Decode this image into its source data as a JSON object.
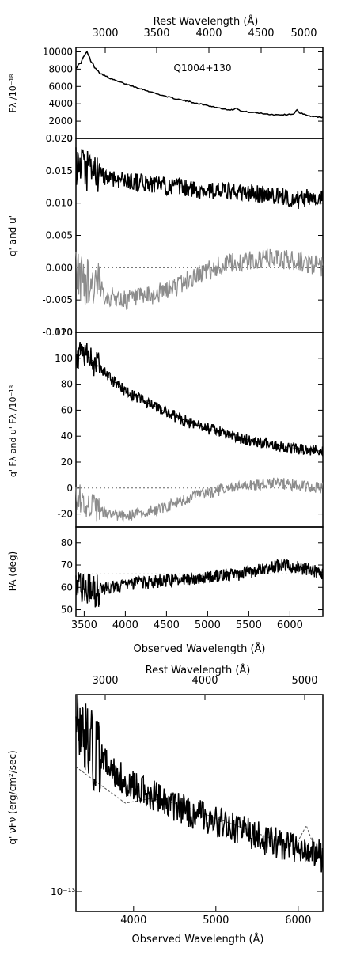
{
  "chart_data": [
    {
      "type": "line",
      "panel": "flux",
      "top_axis_label": "Rest Wavelength (Å)",
      "top_ticks": [
        "3000",
        "3500",
        "4000",
        "4500",
        "5000"
      ],
      "ylabel": "Fλ /10⁻¹⁸",
      "annotation": "Q1004+130",
      "xlim": [
        3400,
        6400
      ],
      "ylim": [
        0,
        10500
      ],
      "y_ticks": [
        "10000",
        "8000",
        "6000",
        "4000",
        "2000",
        "0"
      ],
      "series": [
        {
          "color": "#000000",
          "x": [
            3400,
            3450,
            3500,
            3530,
            3560,
            3600,
            3650,
            3700,
            3800,
            3900,
            4000,
            4100,
            4200,
            4400,
            4600,
            4800,
            5000,
            5200,
            5300,
            5350,
            5400,
            5600,
            5800,
            5950,
            6050,
            6080,
            6120,
            6150,
            6200,
            6300,
            6400
          ],
          "y": [
            8200,
            8600,
            9500,
            10000,
            9400,
            8600,
            8000,
            7500,
            7000,
            6600,
            6300,
            6000,
            5700,
            5100,
            4600,
            4200,
            3800,
            3400,
            3300,
            3550,
            3150,
            2950,
            2750,
            2750,
            2850,
            3350,
            2850,
            2900,
            2700,
            2500,
            2450
          ]
        }
      ]
    },
    {
      "type": "line",
      "panel": "stokes",
      "ylabel": "q' and u'",
      "xlim": [
        3400,
        6400
      ],
      "ylim": [
        -0.01,
        0.02
      ],
      "y_ticks": [
        "0.020",
        "0.015",
        "0.010",
        "0.005",
        "0.000",
        "-0.005",
        "-0.010"
      ],
      "reference_lines": [
        0
      ],
      "series": [
        {
          "name": "q'",
          "color": "#000000",
          "x": [
            3400,
            3600,
            3800,
            4000,
            4300,
            4600,
            4900,
            5200,
            5500,
            5800,
            6100,
            6300,
            6400
          ],
          "y": [
            0.0155,
            0.0145,
            0.014,
            0.0135,
            0.013,
            0.0125,
            0.012,
            0.0118,
            0.0115,
            0.0112,
            0.0105,
            0.011,
            0.0108
          ]
        },
        {
          "name": "u'",
          "color": "#8c8c8c",
          "x": [
            3400,
            3600,
            3800,
            4000,
            4300,
            4600,
            4900,
            5200,
            5500,
            5800,
            6100,
            6300,
            6400
          ],
          "y": [
            -0.001,
            -0.0025,
            -0.0045,
            -0.005,
            -0.0045,
            -0.003,
            -0.001,
            0.0005,
            0.001,
            0.0015,
            0.001,
            0.0005,
            0.0
          ]
        }
      ]
    },
    {
      "type": "line",
      "panel": "polarized-flux",
      "ylabel": "q' Fλ and u' Fλ /10⁻¹⁸",
      "xlim": [
        3400,
        6400
      ],
      "ylim": [
        -30,
        120
      ],
      "y_ticks": [
        "120",
        "100",
        "80",
        "60",
        "40",
        "20",
        "0",
        "-20"
      ],
      "reference_lines": [
        0
      ],
      "series": [
        {
          "name": "q' Fλ",
          "color": "#000000",
          "x": [
            3400,
            3500,
            3600,
            3700,
            3800,
            4000,
            4200,
            4500,
            4800,
            5100,
            5400,
            5700,
            6000,
            6200,
            6400
          ],
          "y": [
            100,
            105,
            98,
            92,
            85,
            75,
            68,
            58,
            50,
            44,
            38,
            35,
            31,
            30,
            28
          ]
        },
        {
          "name": "u' Fλ",
          "color": "#8c8c8c",
          "x": [
            3400,
            3600,
            3800,
            4000,
            4300,
            4600,
            4900,
            5200,
            5500,
            5800,
            6100,
            6400
          ],
          "y": [
            -5,
            -15,
            -20,
            -22,
            -18,
            -12,
            -5,
            -1,
            2,
            4,
            2,
            0
          ]
        }
      ]
    },
    {
      "type": "line",
      "panel": "position-angle",
      "ylabel": "PA (deg)",
      "xlabel": "Observed Wavelength (Å)",
      "xlim": [
        3400,
        6400
      ],
      "ylim": [
        47,
        87
      ],
      "x_ticks": [
        "3500",
        "4000",
        "4500",
        "5000",
        "5500",
        "6000"
      ],
      "y_ticks": [
        "80",
        "70",
        "60",
        "50"
      ],
      "series": [
        {
          "name": "PA",
          "color": "#000000",
          "x": [
            3400,
            3500,
            3600,
            3800,
            4000,
            4200,
            4500,
            4800,
            5100,
            5400,
            5700,
            5900,
            6100,
            6300,
            6400
          ],
          "y": [
            62,
            60,
            58,
            60,
            61,
            62,
            63,
            64,
            65,
            66,
            68,
            70,
            69,
            67,
            66
          ]
        }
      ]
    },
    {
      "type": "line",
      "panel": "nu-f-nu",
      "top_axis_label": "Rest Wavelength (Å)",
      "top_ticks": [
        "3000",
        "4000",
        "5000"
      ],
      "ylabel": "q' νFν (erg/cm²/sec)",
      "xlabel": "Observed Wavelength (Å)",
      "x_ticks": [
        "4000",
        "5000",
        "6000"
      ],
      "y_tick_label": "10⁻¹³",
      "y_scale": "log",
      "xlim": [
        3300,
        6300
      ],
      "ylim": [
        0.8,
        3.2
      ],
      "series": [
        {
          "name": "q' νFν",
          "color": "#000000",
          "x": [
            3300,
            3500,
            3700,
            3900,
            4100,
            4400,
            4700,
            5000,
            5300,
            5600,
            5800,
            6000,
            6200,
            6300
          ],
          "y": [
            2.8,
            2.6,
            2.4,
            2.25,
            2.15,
            2.0,
            1.9,
            1.8,
            1.7,
            1.6,
            1.55,
            1.5,
            1.45,
            1.4
          ]
        },
        {
          "name": "model",
          "color": "#555555",
          "x": [
            3300,
            3600,
            3900,
            4200,
            4500,
            4800,
            5100,
            5400,
            5700,
            5950,
            6100,
            6200,
            6300
          ],
          "y": [
            2.4,
            2.2,
            2.0,
            2.05,
            2.0,
            1.9,
            1.8,
            1.7,
            1.6,
            1.5,
            1.75,
            1.5,
            1.45
          ]
        }
      ]
    }
  ]
}
